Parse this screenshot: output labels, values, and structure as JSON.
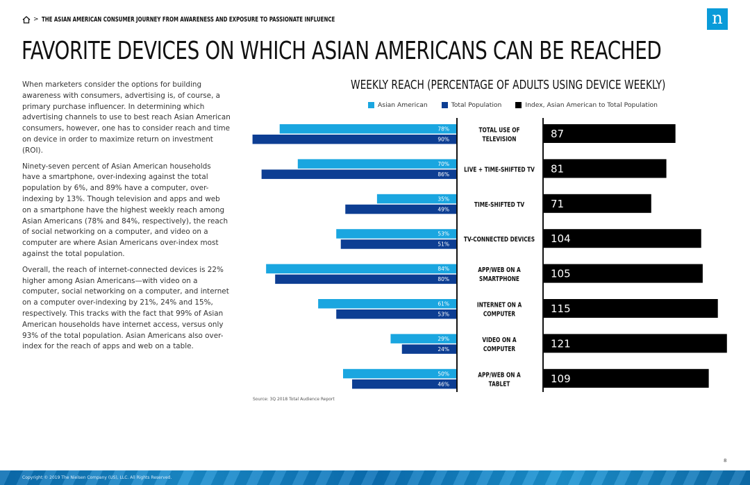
{
  "header": {
    "breadcrumb": "THE ASIAN AMERICAN CONSUMER JOURNEY FROM AWARENESS AND EXPOSURE TO PASSIONATE INFLUENCE",
    "logo_letter": "n",
    "page_title": "FAVORITE DEVICES ON WHICH ASIAN AMERICANS CAN BE REACHED"
  },
  "body_text": {
    "p1": "When marketers consider the options for building awareness with consumers, advertising is, of course, a primary purchase influencer. In determining which advertising channels to use to best reach Asian American consumers, however, one has to consider reach and time on device in order to maximize return on investment (ROI).",
    "p2": "Ninety-seven percent of Asian American households have a smartphone, over-indexing against the total population by 6%, and 89% have a computer, over-indexing by 13%. Though television and apps and web on a smartphone have the highest weekly reach among Asian Americans (78% and 84%, respectively), the reach of social networking on a computer, and video on a computer are where Asian Americans over-index most against the total population.",
    "p3": "Overall, the reach of internet-connected devices is 22% higher among Asian Americans—with video on a computer, social networking on a computer, and internet on a computer over-indexing by 21%, 24% and 15%, respectively. This tracks with the fact that 99% of Asian American households have internet access, versus only 93% of the total population. Asian Americans also over-index for the reach of apps and web on a table."
  },
  "chart_data": {
    "type": "bar",
    "title": "WEEKLY REACH (PERCENTAGE OF ADULTS USING DEVICE WEEKLY)",
    "categories": [
      "TOTAL USE OF TELEVISION",
      "LIVE + TIME-SHIFTED TV",
      "TIME-SHIFTED TV",
      "TV-CONNECTED DEVICES",
      "APP/WEB ON A SMARTPHONE",
      "INTERNET ON A COMPUTER",
      "VIDEO ON A COMPUTER",
      "APP/WEB ON A TABLET"
    ],
    "category_lines": [
      [
        "TOTAL USE OF",
        "TELEVISION"
      ],
      [
        "LIVE + TIME-SHIFTED TV"
      ],
      [
        "TIME-SHIFTED TV"
      ],
      [
        "TV-CONNECTED DEVICES"
      ],
      [
        "APP/WEB ON A",
        "SMARTPHONE"
      ],
      [
        "INTERNET ON A",
        "COMPUTER"
      ],
      [
        "VIDEO ON A",
        "COMPUTER"
      ],
      [
        "APP/WEB ON A",
        "TABLET"
      ]
    ],
    "series": [
      {
        "name": "Asian American",
        "values": [
          78,
          70,
          35,
          53,
          84,
          61,
          29,
          50
        ],
        "labels": [
          "78%",
          "70%",
          "35%",
          "53%",
          "84%",
          "61%",
          "29%",
          "50%"
        ],
        "color": "#1aa6e0"
      },
      {
        "name": "Total Population",
        "values": [
          90,
          86,
          49,
          51,
          80,
          53,
          24,
          46
        ],
        "labels": [
          "90%",
          "86%",
          "49%",
          "51%",
          "80%",
          "53%",
          "24%",
          "46%"
        ],
        "color": "#0d3e93"
      },
      {
        "name": "Index, Asian American to Total Population",
        "values": [
          87,
          81,
          71,
          104,
          105,
          115,
          121,
          109
        ],
        "labels": [
          "87",
          "81",
          "71",
          "104",
          "105",
          "115",
          "121",
          "109"
        ],
        "color": "#000000"
      }
    ],
    "legend_position": "top",
    "grid": false
  },
  "source": "Source: 3Q 2018 Total Audience Report",
  "page_number": "8",
  "copyright": "Copyright © 2019 The Nielsen Company (US), LLC. All Rights Reserved."
}
